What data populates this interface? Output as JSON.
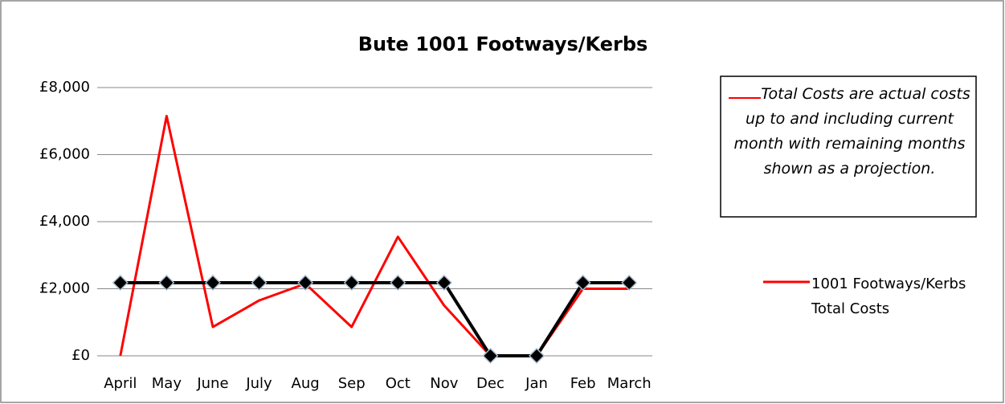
{
  "chart_data": {
    "type": "line",
    "title": "Bute 1001 Footways/Kerbs",
    "categories": [
      "April",
      "May",
      "June",
      "July",
      "Aug",
      "Sep",
      "Oct",
      "Nov",
      "Dec",
      "Jan",
      "Feb",
      "March"
    ],
    "series": [
      {
        "name": "1001 Footways/Kerbs Total Costs",
        "color": "#ff0000",
        "values": [
          0,
          7150,
          860,
          1650,
          2150,
          860,
          3550,
          1500,
          0,
          0,
          2000,
          2000
        ]
      },
      {
        "color": "#000000",
        "marker": "diamond",
        "values": [
          2180,
          2180,
          2180,
          2180,
          2180,
          2180,
          2180,
          2180,
          0,
          0,
          2180,
          2180
        ]
      }
    ],
    "ylim": [
      0,
      8000
    ],
    "yticks": [
      {
        "value": 0,
        "label": "£0"
      },
      {
        "value": 2000,
        "label": "£2,000"
      },
      {
        "value": 4000,
        "label": "£4,000"
      },
      {
        "value": 6000,
        "label": "£6,000"
      },
      {
        "value": 8000,
        "label": "£8,000"
      }
    ],
    "grid": true,
    "annotation": "Total Costs are actual costs up to and including current month with remaining months shown as a projection."
  }
}
